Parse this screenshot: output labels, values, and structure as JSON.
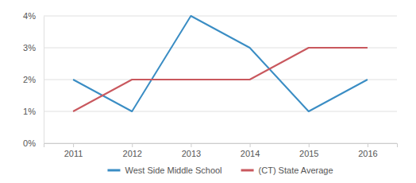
{
  "chart_data": {
    "type": "line",
    "categories": [
      "2011",
      "2012",
      "2013",
      "2014",
      "2015",
      "2016"
    ],
    "series": [
      {
        "name": "West Side Middle School",
        "color": "#3a8dc4",
        "values": [
          2,
          1,
          4,
          3,
          1,
          2
        ]
      },
      {
        "name": "(CT) State Average",
        "color": "#c9585e",
        "values": [
          1,
          2,
          2,
          2,
          3,
          3
        ]
      }
    ],
    "ylim": [
      0,
      4
    ],
    "yticks": [
      {
        "value": 0,
        "label": "0%"
      },
      {
        "value": 1,
        "label": "1%"
      },
      {
        "value": 2,
        "label": "2%"
      },
      {
        "value": 3,
        "label": "3%"
      },
      {
        "value": 4,
        "label": "4%"
      }
    ],
    "grid": true,
    "legend": "bottom"
  }
}
